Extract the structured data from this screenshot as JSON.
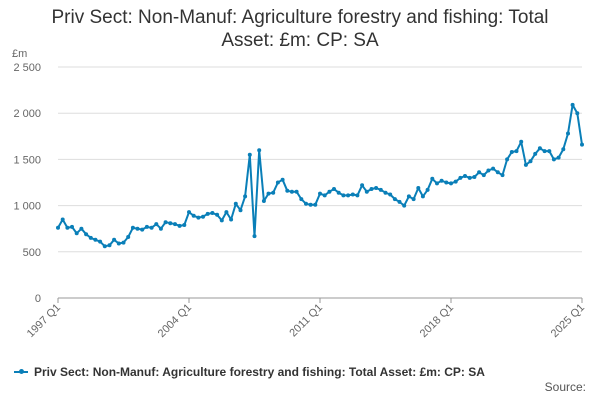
{
  "title_lines": [
    "Priv Sect: Non-Manuf: Agriculture forestry and fishing: Total",
    "Asset: £m: CP: SA"
  ],
  "source_label": "Source:",
  "colors": {
    "series": "#0a7fb8",
    "grid": "#dddddd",
    "axis": "#999999",
    "text": "#666666"
  },
  "chart_data": {
    "type": "line",
    "title": "Priv Sect: Non-Manuf: Agriculture forestry and fishing: Total Asset: £m: CP: SA",
    "xlabel": "",
    "ylabel": "£m",
    "y_unit": "£m",
    "ylim": [
      0,
      2500
    ],
    "yticks": [
      0,
      500,
      1000,
      1500,
      2000,
      2500
    ],
    "ytick_labels": [
      "0",
      "500",
      "1 000",
      "1 500",
      "2 000",
      "2 500"
    ],
    "xticks": [
      "1997 Q1",
      "2004 Q1",
      "2011 Q1",
      "2018 Q1",
      "2025 Q1"
    ],
    "grid": true,
    "legend_position": "bottom",
    "series": [
      {
        "name": "Priv Sect: Non-Manuf: Agriculture forestry and fishing: Total Asset: £m: CP: SA",
        "start": "1997 Q1",
        "frequency": "quarterly",
        "values": [
          760,
          850,
          760,
          770,
          700,
          750,
          690,
          650,
          630,
          610,
          560,
          570,
          630,
          590,
          600,
          660,
          760,
          750,
          740,
          770,
          760,
          800,
          750,
          820,
          810,
          800,
          780,
          790,
          930,
          890,
          870,
          880,
          910,
          920,
          900,
          840,
          930,
          850,
          1020,
          950,
          1100,
          1550,
          670,
          1600,
          1050,
          1130,
          1140,
          1250,
          1280,
          1160,
          1150,
          1150,
          1070,
          1020,
          1010,
          1010,
          1130,
          1110,
          1150,
          1180,
          1140,
          1110,
          1110,
          1120,
          1110,
          1220,
          1150,
          1180,
          1190,
          1170,
          1140,
          1120,
          1070,
          1040,
          1000,
          1100,
          1070,
          1190,
          1100,
          1170,
          1290,
          1240,
          1270,
          1250,
          1240,
          1260,
          1300,
          1320,
          1300,
          1310,
          1360,
          1330,
          1380,
          1400,
          1360,
          1330,
          1500,
          1580,
          1590,
          1690,
          1440,
          1480,
          1560,
          1620,
          1590,
          1590,
          1500,
          1520,
          1610,
          1780,
          2090,
          2000,
          1660
        ]
      }
    ]
  }
}
